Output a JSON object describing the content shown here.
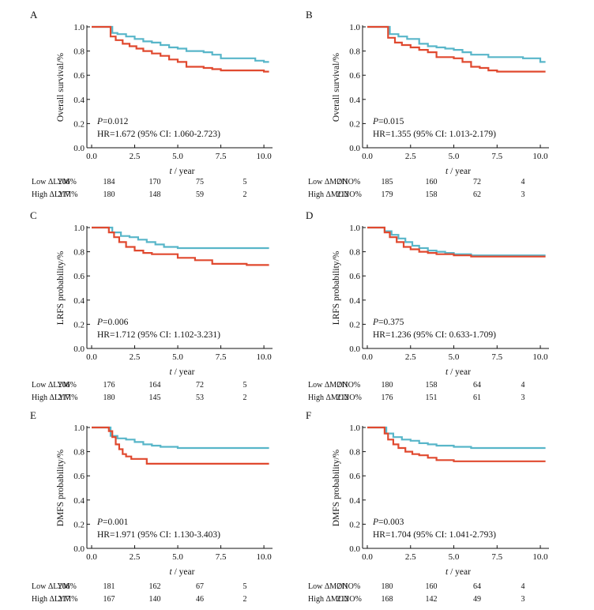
{
  "colors": {
    "low": "#58b6c9",
    "high": "#e0492f"
  },
  "chart_data": [
    {
      "panel": "A",
      "type": "line",
      "ylabel": "Overall survival/%",
      "xlabel_italic": "t",
      "xlabel_unit": "/ year",
      "xlim": [
        0,
        10.5
      ],
      "ylim": [
        0,
        1.0
      ],
      "xticks": [
        "0.0",
        "2.5",
        "5.0",
        "7.5",
        "10.0"
      ],
      "yticks": [
        "0.0",
        "0.2",
        "0.4",
        "0.6",
        "0.8",
        "1.0"
      ],
      "p_label": "P",
      "p_value": "=0.012",
      "hr": "HR=1.672 (95% CI: 1.060-2.723)",
      "series": [
        {
          "key": "low",
          "x": [
            0,
            0.8,
            1.2,
            1.5,
            2,
            2.5,
            3,
            3.5,
            4,
            4.5,
            5,
            5.5,
            6,
            6.5,
            7,
            7.5,
            8,
            8.5,
            9,
            9.5,
            10,
            10.3
          ],
          "y": [
            1,
            1,
            0.95,
            0.94,
            0.92,
            0.9,
            0.88,
            0.87,
            0.85,
            0.83,
            0.82,
            0.8,
            0.8,
            0.79,
            0.77,
            0.74,
            0.74,
            0.74,
            0.74,
            0.72,
            0.71,
            0.71
          ]
        },
        {
          "key": "high",
          "x": [
            0,
            0.8,
            1.1,
            1.4,
            1.8,
            2.2,
            2.6,
            3,
            3.5,
            4,
            4.5,
            5,
            5.5,
            6,
            6.5,
            7,
            7.5,
            8,
            9,
            10,
            10.3
          ],
          "y": [
            1,
            1,
            0.92,
            0.89,
            0.86,
            0.84,
            0.82,
            0.8,
            0.78,
            0.76,
            0.73,
            0.71,
            0.67,
            0.67,
            0.66,
            0.65,
            0.64,
            0.64,
            0.64,
            0.63,
            0.63
          ]
        }
      ],
      "risk_rows": [
        {
          "label": "Low  ΔLYM%",
          "values": [
            "206",
            "184",
            "170",
            "75",
            "5"
          ]
        },
        {
          "label": "High  ΔLYM%",
          "values": [
            "217",
            "180",
            "148",
            "59",
            "2"
          ]
        }
      ]
    },
    {
      "panel": "B",
      "type": "line",
      "ylabel": "Overall survival/%",
      "xlabel_italic": "t",
      "xlabel_unit": "/ year",
      "xlim": [
        0,
        10.5
      ],
      "ylim": [
        0,
        1.0
      ],
      "xticks": [
        "0.0",
        "2.5",
        "5.0",
        "7.5",
        "10.0"
      ],
      "yticks": [
        "0.0",
        "0.2",
        "0.4",
        "0.6",
        "0.8",
        "1.0"
      ],
      "p_label": "P",
      "p_value": "=0.015",
      "hr": "HR=1.355 (95% CI: 1.013-2.179)",
      "series": [
        {
          "key": "low",
          "x": [
            0,
            1,
            1.3,
            1.8,
            2.3,
            3,
            3.5,
            4,
            4.5,
            5,
            5.5,
            6,
            7,
            8,
            9,
            10,
            10.3
          ],
          "y": [
            1,
            1,
            0.94,
            0.92,
            0.9,
            0.86,
            0.84,
            0.83,
            0.82,
            0.81,
            0.79,
            0.77,
            0.75,
            0.75,
            0.74,
            0.71,
            0.71
          ]
        },
        {
          "key": "high",
          "x": [
            0,
            1,
            1.2,
            1.6,
            2,
            2.5,
            3,
            3.5,
            4,
            4.5,
            5,
            5.5,
            6,
            6.5,
            7,
            7.5,
            8,
            10,
            10.3
          ],
          "y": [
            1,
            1,
            0.91,
            0.87,
            0.85,
            0.83,
            0.81,
            0.79,
            0.75,
            0.75,
            0.74,
            0.71,
            0.67,
            0.66,
            0.64,
            0.63,
            0.63,
            0.63,
            0.63
          ]
        }
      ],
      "risk_rows": [
        {
          "label": "Low  ΔMONO%",
          "values": [
            "211",
            "185",
            "160",
            "72",
            "4"
          ]
        },
        {
          "label": "High  ΔMONO%",
          "values": [
            "212",
            "179",
            "158",
            "62",
            "3"
          ]
        }
      ]
    },
    {
      "panel": "C",
      "type": "line",
      "ylabel": "LRFS probability/%",
      "xlabel_italic": "t",
      "xlabel_unit": "/ year",
      "xlim": [
        0,
        10.5
      ],
      "ylim": [
        0,
        1.0
      ],
      "xticks": [
        "0.0",
        "2.5",
        "5.0",
        "7.5",
        "10.0"
      ],
      "yticks": [
        "0.0",
        "0.2",
        "0.4",
        "0.6",
        "0.8",
        "1.0"
      ],
      "p_label": "P",
      "p_value": "=0.006",
      "hr": "HR=1.712 (95% CI: 1.102-3.231)",
      "series": [
        {
          "key": "low",
          "x": [
            0,
            0.8,
            1.2,
            1.7,
            2.2,
            2.7,
            3.2,
            3.7,
            4.2,
            5,
            6,
            8,
            10,
            10.3
          ],
          "y": [
            1,
            1,
            0.96,
            0.93,
            0.92,
            0.9,
            0.88,
            0.86,
            0.84,
            0.83,
            0.83,
            0.83,
            0.83,
            0.83
          ]
        },
        {
          "key": "high",
          "x": [
            0,
            0.6,
            1,
            1.3,
            1.6,
            2,
            2.5,
            3,
            3.5,
            4,
            5,
            6,
            7,
            8,
            9,
            10,
            10.3
          ],
          "y": [
            1,
            1,
            0.96,
            0.92,
            0.88,
            0.84,
            0.81,
            0.79,
            0.78,
            0.78,
            0.75,
            0.73,
            0.7,
            0.7,
            0.69,
            0.69,
            0.69
          ]
        }
      ],
      "risk_rows": [
        {
          "label": "Low  ΔLYM%",
          "values": [
            "206",
            "176",
            "164",
            "72",
            "5"
          ]
        },
        {
          "label": "High  ΔLYM%",
          "values": [
            "217",
            "180",
            "145",
            "53",
            "2"
          ]
        }
      ]
    },
    {
      "panel": "D",
      "type": "line",
      "ylabel": "LRFS probability/%",
      "xlabel_italic": "t",
      "xlabel_unit": "/ year",
      "xlim": [
        0,
        10.5
      ],
      "ylim": [
        0,
        1.0
      ],
      "xticks": [
        "0.0",
        "2.5",
        "5.0",
        "7.5",
        "10.0"
      ],
      "yticks": [
        "0.0",
        "0.2",
        "0.4",
        "0.6",
        "0.8",
        "1.0"
      ],
      "p_label": "P",
      "p_value": "=0.375",
      "hr": "HR=1.236 (95% CI: 0.633-1.709)",
      "series": [
        {
          "key": "low",
          "x": [
            0,
            0.6,
            1,
            1.4,
            1.8,
            2.2,
            2.6,
            3,
            3.5,
            4,
            4.5,
            5,
            6,
            7,
            8,
            10,
            10.3
          ],
          "y": [
            1,
            1,
            0.97,
            0.94,
            0.91,
            0.88,
            0.85,
            0.83,
            0.81,
            0.8,
            0.79,
            0.78,
            0.77,
            0.77,
            0.77,
            0.77,
            0.77
          ]
        },
        {
          "key": "high",
          "x": [
            0,
            0.6,
            1,
            1.3,
            1.7,
            2.1,
            2.5,
            3,
            3.5,
            4,
            5,
            6,
            8,
            10,
            10.3
          ],
          "y": [
            1,
            1,
            0.96,
            0.92,
            0.88,
            0.84,
            0.82,
            0.8,
            0.79,
            0.78,
            0.77,
            0.76,
            0.76,
            0.76,
            0.76
          ]
        }
      ],
      "risk_rows": [
        {
          "label": "Low  ΔMONO%",
          "values": [
            "211",
            "180",
            "158",
            "64",
            "4"
          ]
        },
        {
          "label": "High  ΔMONO%",
          "values": [
            "212",
            "176",
            "151",
            "61",
            "3"
          ]
        }
      ]
    },
    {
      "panel": "E",
      "type": "line",
      "ylabel": "DMFS probability/%",
      "xlabel_italic": "t",
      "xlabel_unit": "/ year",
      "xlim": [
        0,
        10.5
      ],
      "ylim": [
        0,
        1.0
      ],
      "xticks": [
        "0.0",
        "2.5",
        "5.0",
        "7.5",
        "10.0"
      ],
      "yticks": [
        "0.0",
        "0.2",
        "0.4",
        "0.6",
        "0.8",
        "1.0"
      ],
      "p_label": "P",
      "p_value": "=0.001",
      "hr": "HR=1.971 (95% CI: 1.130-3.403)",
      "series": [
        {
          "key": "low",
          "x": [
            0,
            0.8,
            1.1,
            1.5,
            2,
            2.5,
            3,
            3.5,
            4,
            5,
            6,
            8,
            10,
            10.3
          ],
          "y": [
            1,
            1,
            0.93,
            0.91,
            0.9,
            0.88,
            0.86,
            0.85,
            0.84,
            0.83,
            0.83,
            0.83,
            0.83,
            0.83
          ]
        },
        {
          "key": "high",
          "x": [
            0,
            0.7,
            1,
            1.2,
            1.4,
            1.6,
            1.8,
            2,
            2.3,
            3.2,
            4,
            6,
            8,
            10,
            10.3
          ],
          "y": [
            1,
            1,
            0.97,
            0.92,
            0.86,
            0.82,
            0.78,
            0.76,
            0.74,
            0.7,
            0.7,
            0.7,
            0.7,
            0.7,
            0.7
          ]
        }
      ],
      "risk_rows": [
        {
          "label": "Low  ΔLYM%",
          "values": [
            "206",
            "181",
            "162",
            "67",
            "5"
          ]
        },
        {
          "label": "High  ΔLYM%",
          "values": [
            "217",
            "167",
            "140",
            "46",
            "2"
          ]
        }
      ]
    },
    {
      "panel": "F",
      "type": "line",
      "ylabel": "DMFS probability/%",
      "xlabel_italic": "t",
      "xlabel_unit": "/ year",
      "xlim": [
        0,
        10.5
      ],
      "ylim": [
        0,
        1.0
      ],
      "xticks": [
        "0.0",
        "2.5",
        "5.0",
        "7.5",
        "10.0"
      ],
      "yticks": [
        "0.0",
        "0.2",
        "0.4",
        "0.6",
        "0.8",
        "1.0"
      ],
      "p_label": "P",
      "p_value": "=0.003",
      "hr": "HR=1.704 (95% CI: 1.041-2.793)",
      "series": [
        {
          "key": "low",
          "x": [
            0,
            0.8,
            1.1,
            1.5,
            2,
            2.5,
            3,
            3.5,
            4,
            5,
            6,
            8,
            10,
            10.3
          ],
          "y": [
            1,
            1,
            0.95,
            0.92,
            0.9,
            0.89,
            0.87,
            0.86,
            0.85,
            0.84,
            0.83,
            0.83,
            0.83,
            0.83
          ]
        },
        {
          "key": "high",
          "x": [
            0,
            0.8,
            1,
            1.2,
            1.5,
            1.8,
            2.2,
            2.6,
            3,
            3.5,
            4,
            4.5,
            5,
            6,
            8,
            10,
            10.3
          ],
          "y": [
            1,
            1,
            0.95,
            0.9,
            0.86,
            0.83,
            0.8,
            0.78,
            0.77,
            0.75,
            0.73,
            0.73,
            0.72,
            0.72,
            0.72,
            0.72,
            0.72
          ]
        }
      ],
      "risk_rows": [
        {
          "label": "Low  ΔMONO%",
          "values": [
            "211",
            "180",
            "160",
            "64",
            "4"
          ]
        },
        {
          "label": "High  ΔMONO%",
          "values": [
            "212",
            "168",
            "142",
            "49",
            "3"
          ]
        }
      ]
    }
  ]
}
